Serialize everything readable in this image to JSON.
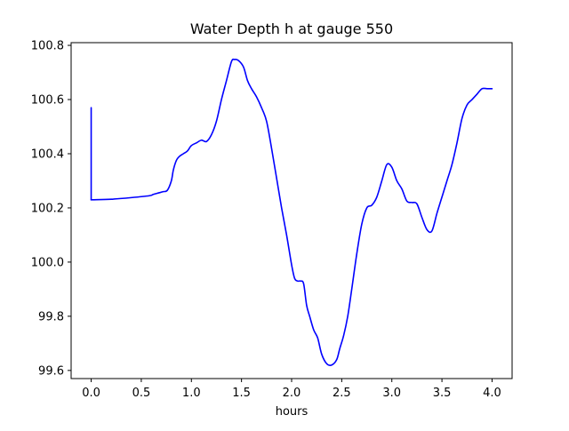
{
  "chart_data": {
    "type": "line",
    "title": "Water Depth h at gauge 550",
    "xlabel": "hours",
    "ylabel": "",
    "xlim": [
      -0.2,
      4.2
    ],
    "ylim": [
      99.57,
      100.81
    ],
    "xticks": [
      "0.0",
      "0.5",
      "1.0",
      "1.5",
      "2.0",
      "2.5",
      "3.0",
      "3.5",
      "4.0"
    ],
    "yticks": [
      "99.6",
      "99.8",
      "100.0",
      "100.2",
      "100.4",
      "100.6",
      "100.8"
    ],
    "grid": false,
    "color": "#0000ff",
    "series": [
      {
        "x": [
          0.0,
          0.0,
          0.02,
          0.2,
          0.4,
          0.58,
          0.62,
          0.67,
          0.72,
          0.76,
          0.8,
          0.82,
          0.85,
          0.88,
          0.92,
          0.96,
          1.0,
          1.05,
          1.1,
          1.15,
          1.2,
          1.25,
          1.3,
          1.35,
          1.4,
          1.43,
          1.47,
          1.52,
          1.56,
          1.6,
          1.65,
          1.7,
          1.75,
          1.8,
          1.85,
          1.9,
          1.95,
          2.0,
          2.03,
          2.06,
          2.09,
          2.12,
          2.15,
          2.18,
          2.22,
          2.26,
          2.3,
          2.35,
          2.4,
          2.45,
          2.48,
          2.52,
          2.56,
          2.6,
          2.65,
          2.7,
          2.75,
          2.8,
          2.85,
          2.9,
          2.95,
          3.0,
          3.05,
          3.1,
          3.15,
          3.2,
          3.25,
          3.3,
          3.35,
          3.4,
          3.45,
          3.5,
          3.55,
          3.6,
          3.65,
          3.7,
          3.75,
          3.8,
          3.85,
          3.9,
          3.95,
          4.0
        ],
        "y": [
          100.57,
          100.23,
          100.23,
          100.232,
          100.238,
          100.245,
          100.25,
          100.255,
          100.26,
          100.265,
          100.3,
          100.34,
          100.375,
          100.39,
          100.4,
          100.41,
          100.43,
          100.44,
          100.45,
          100.445,
          100.47,
          100.52,
          100.6,
          100.67,
          100.74,
          100.748,
          100.744,
          100.72,
          100.67,
          100.64,
          100.61,
          100.57,
          100.52,
          100.42,
          100.31,
          100.2,
          100.1,
          99.99,
          99.94,
          99.93,
          99.93,
          99.92,
          99.84,
          99.8,
          99.75,
          99.72,
          99.66,
          99.625,
          99.62,
          99.64,
          99.68,
          99.73,
          99.8,
          99.9,
          100.03,
          100.14,
          100.2,
          100.21,
          100.24,
          100.3,
          100.36,
          100.35,
          100.3,
          100.27,
          100.225,
          100.22,
          100.215,
          100.165,
          100.12,
          100.115,
          100.18,
          100.24,
          100.3,
          100.36,
          100.44,
          100.53,
          100.58,
          100.6,
          100.62,
          100.64,
          100.64,
          100.64
        ]
      }
    ]
  }
}
